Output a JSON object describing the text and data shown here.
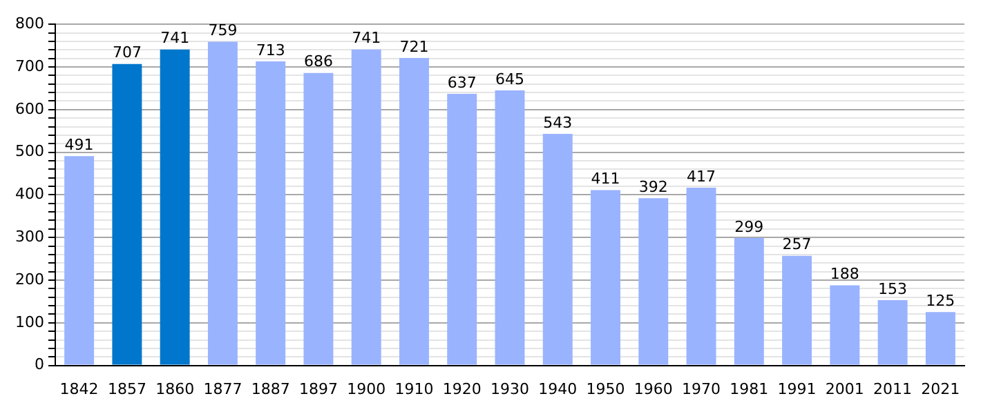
{
  "chart_data": {
    "type": "bar",
    "categories": [
      "1842",
      "1857",
      "1860",
      "1877",
      "1887",
      "1897",
      "1900",
      "1910",
      "1920",
      "1930",
      "1940",
      "1950",
      "1960",
      "1970",
      "1981",
      "1991",
      "2001",
      "2011",
      "2021"
    ],
    "values": [
      491,
      707,
      741,
      759,
      713,
      686,
      741,
      721,
      637,
      645,
      543,
      411,
      392,
      417,
      299,
      257,
      188,
      153,
      125
    ],
    "colors": [
      "#99b3ff",
      "#0077cc",
      "#0077cc",
      "#99b3ff",
      "#99b3ff",
      "#99b3ff",
      "#99b3ff",
      "#99b3ff",
      "#99b3ff",
      "#99b3ff",
      "#99b3ff",
      "#99b3ff",
      "#99b3ff",
      "#99b3ff",
      "#99b3ff",
      "#99b3ff",
      "#99b3ff",
      "#99b3ff",
      "#99b3ff"
    ],
    "ylim": [
      0,
      800
    ],
    "yticks": [
      0,
      {
        "value": 20,
        "label": null
      },
      {
        "value": 40,
        "label": null
      },
      {
        "value": 60,
        "label": null
      },
      {
        "value": 80,
        "label": null
      },
      100,
      {
        "value": 120,
        "label": null
      },
      {
        "value": 140,
        "label": null
      },
      {
        "value": 160,
        "label": null
      },
      {
        "value": 180,
        "label": null
      },
      200,
      {
        "value": 220,
        "label": null
      },
      {
        "value": 240,
        "label": null
      },
      {
        "value": 260,
        "label": null
      },
      {
        "value": 280,
        "label": null
      },
      300,
      {
        "value": 320,
        "label": null
      },
      {
        "value": 340,
        "label": null
      },
      {
        "value": 360,
        "label": null
      },
      {
        "value": 380,
        "label": null
      },
      400,
      {
        "value": 420,
        "label": null
      },
      {
        "value": 440,
        "label": null
      },
      {
        "value": 460,
        "label": null
      },
      {
        "value": 480,
        "label": null
      },
      500,
      {
        "value": 520,
        "label": null
      },
      {
        "value": 540,
        "label": null
      },
      {
        "value": 560,
        "label": null
      },
      {
        "value": 580,
        "label": null
      },
      600,
      {
        "value": 620,
        "label": null
      },
      {
        "value": 640,
        "label": null
      },
      {
        "value": 660,
        "label": null
      },
      {
        "value": 680,
        "label": null
      },
      700,
      {
        "value": 720,
        "label": null
      },
      {
        "value": 740,
        "label": null
      },
      {
        "value": 760,
        "label": null
      },
      {
        "value": 780,
        "label": null
      },
      800
    ],
    "grid": "y",
    "data_labels": true
  }
}
